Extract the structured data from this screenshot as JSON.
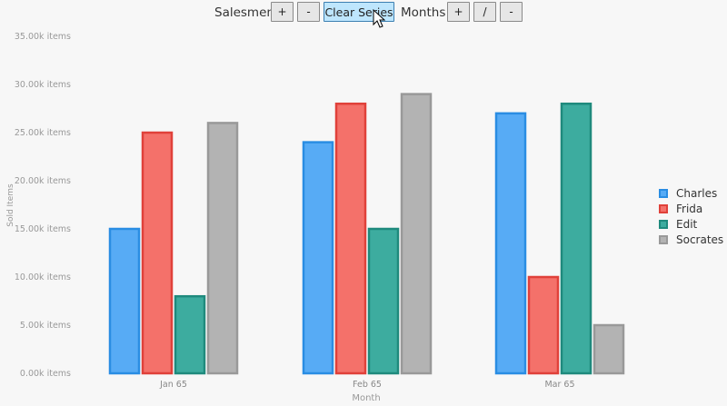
{
  "toolbar": {
    "salesmen_label": "Salesmen",
    "salesmen_add": "+",
    "salesmen_remove": "-",
    "clear_series": "Clear Series",
    "months_label": "Months",
    "months_add": "+",
    "months_slash": "/",
    "months_remove": "-"
  },
  "chart_data": {
    "type": "bar",
    "categories": [
      "Jan 65",
      "Feb 65",
      "Mar 65"
    ],
    "series": [
      {
        "name": "Charles",
        "values": [
          15000,
          24000,
          27000
        ],
        "fill": "#57abf5",
        "stroke": "#2a8de3"
      },
      {
        "name": "Frida",
        "values": [
          25000,
          28000,
          10000
        ],
        "fill": "#f4716a",
        "stroke": "#e0413a"
      },
      {
        "name": "Edit",
        "values": [
          8000,
          15000,
          28000
        ],
        "fill": "#3dac9f",
        "stroke": "#1f8a7d"
      },
      {
        "name": "Socrates",
        "values": [
          26000,
          29000,
          5000
        ],
        "fill": "#b3b3b3",
        "stroke": "#999999"
      }
    ],
    "yticks": [
      "0.00k items",
      "5.00k items",
      "10.00k items",
      "15.00k items",
      "20.00k items",
      "25.00k items",
      "30.00k items",
      "35.00k items"
    ],
    "xlabel": "Month",
    "ylabel": "Sold Items",
    "ylim": [
      0,
      35000
    ],
    "legend_position": "right"
  }
}
